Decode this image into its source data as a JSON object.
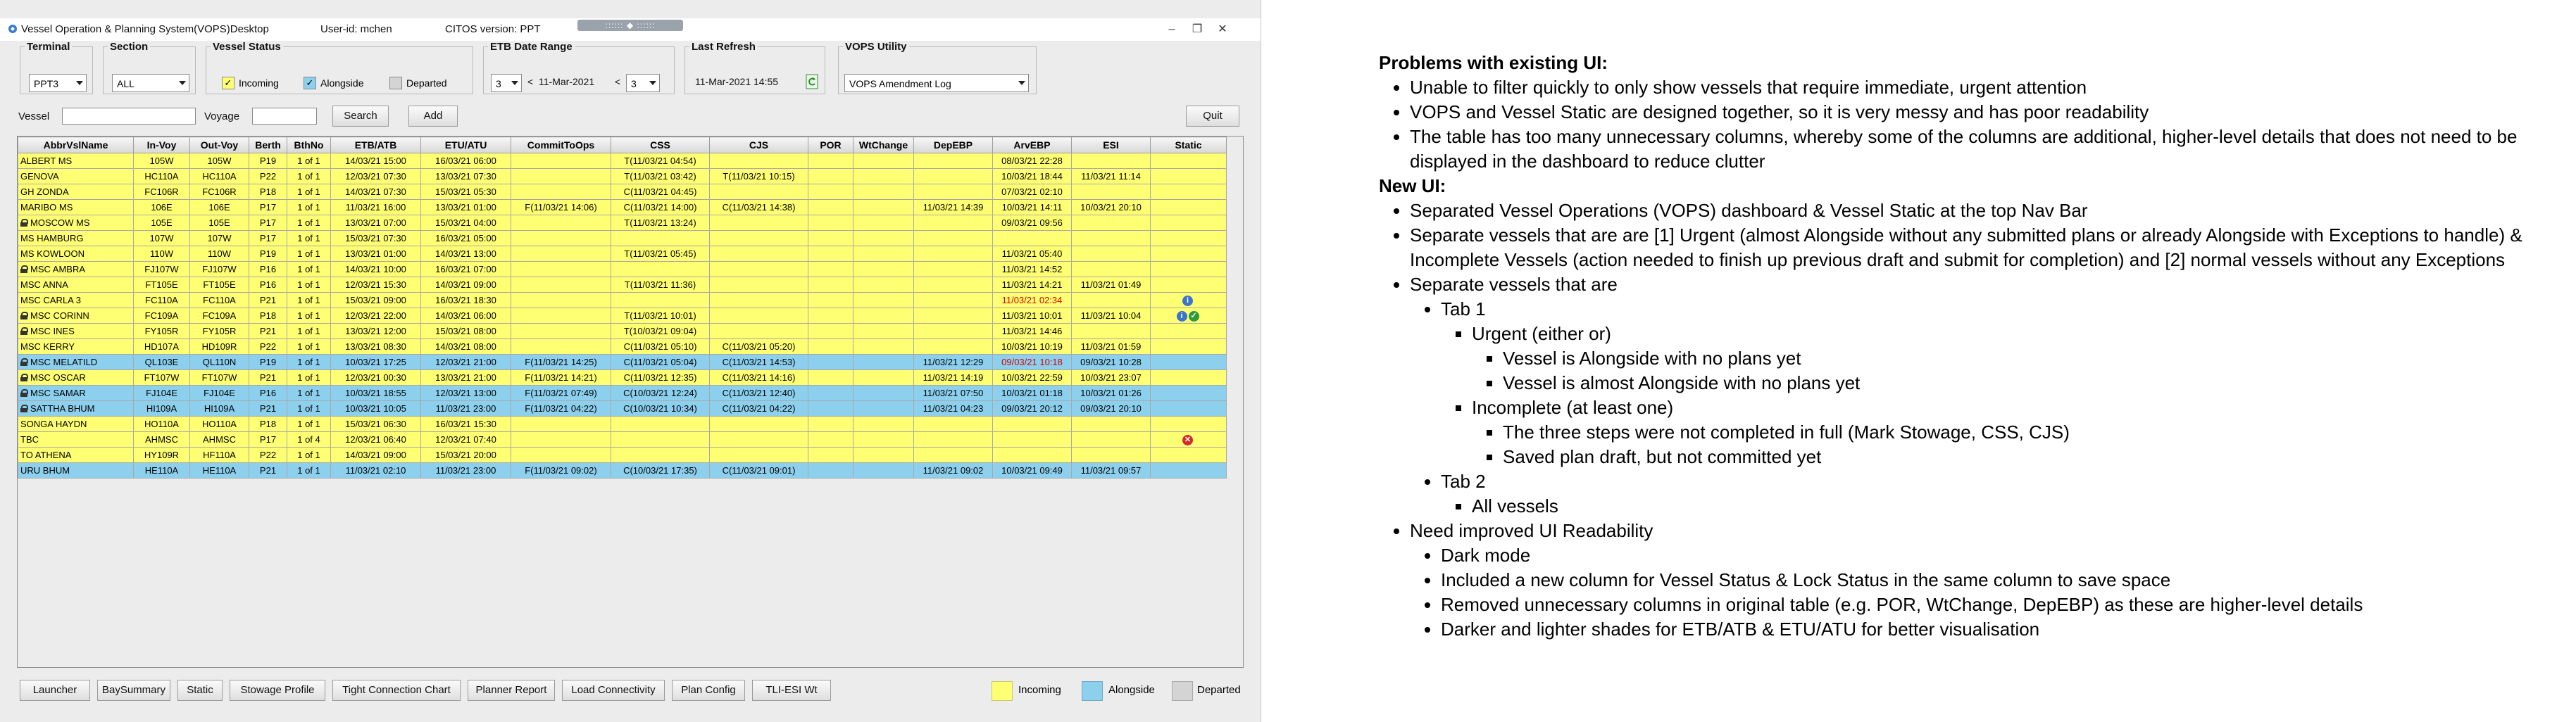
{
  "window": {
    "title": "Vessel Operation & Planning System(VOPS)Desktop",
    "user": "User-id: mchen",
    "citos_version": "CITOS version: PPT",
    "grip_label": ":::::: ◆ ::::::"
  },
  "filters": {
    "terminal": {
      "label": "Terminal",
      "value": "PPT3"
    },
    "section": {
      "label": "Section",
      "value": "ALL"
    },
    "vessel_status": {
      "label": "Vessel Status",
      "incoming": "Incoming",
      "alongside": "Alongside",
      "departed": "Departed"
    },
    "etb_range": {
      "label": "ETB Date Range",
      "from": "3",
      "date": "11-Mar-2021",
      "to": "3",
      "lt": "<"
    },
    "last_refresh": {
      "label": "Last Refresh",
      "value": "11-Mar-2021 14:55"
    },
    "vops_utility": {
      "label": "VOPS Utility",
      "value": "VOPS Amendment Log"
    }
  },
  "search": {
    "vessel_label": "Vessel",
    "voyage_label": "Voyage",
    "vessel_value": "",
    "voyage_value": "",
    "search_button": "Search",
    "add_button": "Add",
    "quit_button": "Quit"
  },
  "table": {
    "headers": [
      "AbbrVslName",
      "In-Voy",
      "Out-Voy",
      "Berth",
      "BthNo",
      "ETB/ATB",
      "ETU/ATU",
      "CommitToOps",
      "CSS",
      "CJS",
      "POR",
      "WtChange",
      "DepEBP",
      "ArvEBP",
      "ESI",
      "Static"
    ],
    "rows": [
      {
        "status": "incoming",
        "lock": false,
        "cells": [
          "ALBERT MS",
          "105W",
          "105W",
          "P19",
          "1 of 1",
          "14/03/21 15:00",
          "16/03/21 06:00",
          "",
          "T(11/03/21 04:54)",
          "",
          "",
          "",
          "",
          "08/03/21 22:28",
          "",
          ""
        ],
        "icons": []
      },
      {
        "status": "incoming",
        "lock": false,
        "cells": [
          "GENOVA",
          "HC110A",
          "HC110A",
          "P22",
          "1 of 1",
          "12/03/21 07:30",
          "13/03/21 07:30",
          "",
          "T(11/03/21 03:42)",
          "T(11/03/21 10:15)",
          "",
          "",
          "",
          "10/03/21 18:44",
          "11/03/21 11:14",
          ""
        ],
        "icons": []
      },
      {
        "status": "incoming",
        "lock": false,
        "cells": [
          "GH ZONDA",
          "FC106R",
          "FC106R",
          "P18",
          "1 of 1",
          "14/03/21 07:30",
          "15/03/21 05:30",
          "",
          "C(11/03/21 04:45)",
          "",
          "",
          "",
          "",
          "07/03/21 02:10",
          "",
          ""
        ],
        "icons": []
      },
      {
        "status": "incoming",
        "lock": false,
        "cells": [
          "MARIBO MS",
          "106E",
          "106E",
          "P17",
          "1 of 1",
          "11/03/21 16:00",
          "13/03/21 01:00",
          "F(11/03/21 14:06)",
          "C(11/03/21 14:00)",
          "C(11/03/21 14:38)",
          "",
          "",
          "11/03/21 14:39",
          "10/03/21 14:11",
          "10/03/21 20:10",
          ""
        ],
        "icons": []
      },
      {
        "status": "incoming",
        "lock": true,
        "cells": [
          "MOSCOW MS",
          "105E",
          "105E",
          "P17",
          "1 of 1",
          "13/03/21 07:00",
          "15/03/21 04:00",
          "",
          "T(11/03/21 13:24)",
          "",
          "",
          "",
          "",
          "09/03/21 09:56",
          "",
          ""
        ],
        "icons": []
      },
      {
        "status": "incoming",
        "lock": false,
        "cells": [
          "MS HAMBURG",
          "107W",
          "107W",
          "P17",
          "1 of 1",
          "15/03/21 07:30",
          "16/03/21 05:00",
          "",
          "",
          "",
          "",
          "",
          "",
          "",
          "",
          ""
        ],
        "icons": []
      },
      {
        "status": "incoming",
        "lock": false,
        "cells": [
          "MS KOWLOON",
          "110W",
          "110W",
          "P19",
          "1 of 1",
          "13/03/21 01:00",
          "14/03/21 13:00",
          "",
          "T(11/03/21 05:45)",
          "",
          "",
          "",
          "",
          "11/03/21 05:40",
          "",
          ""
        ],
        "icons": []
      },
      {
        "status": "incoming",
        "lock": true,
        "cells": [
          "MSC AMBRA",
          "FJ107W",
          "FJ107W",
          "P16",
          "1 of 1",
          "14/03/21 10:00",
          "16/03/21 07:00",
          "",
          "",
          "",
          "",
          "",
          "",
          "11/03/21 14:52",
          "",
          ""
        ],
        "icons": []
      },
      {
        "status": "incoming",
        "lock": false,
        "cells": [
          "MSC ANNA",
          "FT105E",
          "FT105E",
          "P16",
          "1 of 1",
          "12/03/21 15:30",
          "14/03/21 09:00",
          "",
          "T(11/03/21 11:36)",
          "",
          "",
          "",
          "",
          "11/03/21 14:21",
          "11/03/21 01:49",
          ""
        ],
        "icons": []
      },
      {
        "status": "incoming",
        "lock": false,
        "red_arv": true,
        "cells": [
          "MSC CARLA 3",
          "FC110A",
          "FC110A",
          "P21",
          "1 of 1",
          "15/03/21 09:00",
          "16/03/21 18:30",
          "",
          "",
          "",
          "",
          "",
          "",
          "11/03/21 02:34",
          "",
          ""
        ],
        "icons": [
          "info"
        ]
      },
      {
        "status": "incoming",
        "lock": true,
        "cells": [
          "MSC CORINN",
          "FC109A",
          "FC109A",
          "P18",
          "1 of 1",
          "12/03/21 22:00",
          "14/03/21 06:00",
          "",
          "T(11/03/21 10:01)",
          "",
          "",
          "",
          "",
          "11/03/21 10:01",
          "11/03/21 10:04",
          ""
        ],
        "icons": [
          "info",
          "ok"
        ]
      },
      {
        "status": "incoming",
        "lock": true,
        "cells": [
          "MSC INES",
          "FY105R",
          "FY105R",
          "P21",
          "1 of 1",
          "13/03/21 12:00",
          "15/03/21 08:00",
          "",
          "T(10/03/21 09:04)",
          "",
          "",
          "",
          "",
          "11/03/21 14:46",
          "",
          ""
        ],
        "icons": []
      },
      {
        "status": "incoming",
        "lock": false,
        "cells": [
          "MSC KERRY",
          "HD107A",
          "HD109R",
          "P22",
          "1 of 1",
          "13/03/21 08:30",
          "14/03/21 08:00",
          "",
          "C(11/03/21 05:10)",
          "C(11/03/21 05:20)",
          "",
          "",
          "",
          "10/03/21 10:19",
          "11/03/21 01:59",
          ""
        ],
        "icons": []
      },
      {
        "status": "alongside",
        "lock": true,
        "red_arv": true,
        "cells": [
          "MSC MELATILD",
          "QL103E",
          "QL110N",
          "P19",
          "1 of 1",
          "10/03/21 17:25",
          "12/03/21 21:00",
          "F(11/03/21 14:25)",
          "C(11/03/21 05:04)",
          "C(11/03/21 14:53)",
          "",
          "",
          "11/03/21 12:29",
          "09/03/21 10:18",
          "09/03/21 10:28",
          ""
        ],
        "icons": []
      },
      {
        "status": "incoming",
        "lock": true,
        "cells": [
          "MSC OSCAR",
          "FT107W",
          "FT107W",
          "P21",
          "1 of 1",
          "12/03/21 00:30",
          "13/03/21 21:00",
          "F(11/03/21 14:21)",
          "C(11/03/21 12:35)",
          "C(11/03/21 14:16)",
          "",
          "",
          "11/03/21 14:19",
          "10/03/21 22:59",
          "10/03/21 23:07",
          ""
        ],
        "icons": []
      },
      {
        "status": "alongside",
        "lock": true,
        "cells": [
          "MSC SAMAR",
          "FJ104E",
          "FJ104E",
          "P16",
          "1 of 1",
          "10/03/21 18:55",
          "12/03/21 13:00",
          "F(11/03/21 07:49)",
          "C(10/03/21 12:24)",
          "C(11/03/21 12:40)",
          "",
          "",
          "11/03/21 07:50",
          "10/03/21 01:18",
          "10/03/21 01:26",
          ""
        ],
        "icons": []
      },
      {
        "status": "alongside",
        "lock": true,
        "cells": [
          "SATTHA BHUM",
          "HI109A",
          "HI109A",
          "P21",
          "1 of 1",
          "10/03/21 10:05",
          "11/03/21 23:00",
          "F(11/03/21 04:22)",
          "C(10/03/21 10:34)",
          "C(11/03/21 04:22)",
          "",
          "",
          "11/03/21 04:23",
          "09/03/21 20:12",
          "09/03/21 20:10",
          ""
        ],
        "icons": []
      },
      {
        "status": "incoming",
        "lock": false,
        "cells": [
          "SONGA HAYDN",
          "HO110A",
          "HO110A",
          "P18",
          "1 of 1",
          "15/03/21 06:30",
          "16/03/21 15:30",
          "",
          "",
          "",
          "",
          "",
          "",
          "",
          "",
          ""
        ],
        "icons": []
      },
      {
        "status": "incoming",
        "lock": false,
        "cells": [
          "TBC",
          "AHMSC",
          "AHMSC",
          "P17",
          "1 of 4",
          "12/03/21 06:40",
          "12/03/21 07:40",
          "",
          "",
          "",
          "",
          "",
          "",
          "",
          "",
          ""
        ],
        "icons": [
          "error"
        ]
      },
      {
        "status": "incoming",
        "lock": false,
        "cells": [
          "TO ATHENA",
          "HY109R",
          "HF110A",
          "P22",
          "1 of 1",
          "14/03/21 09:00",
          "15/03/21 20:00",
          "",
          "",
          "",
          "",
          "",
          "",
          "",
          "",
          ""
        ],
        "icons": []
      },
      {
        "status": "alongside",
        "lock": false,
        "cells": [
          "URU BHUM",
          "HE110A",
          "HE110A",
          "P21",
          "1 of 1",
          "11/03/21 02:10",
          "11/03/21 23:00",
          "F(11/03/21 09:02)",
          "C(10/03/21 17:35)",
          "C(11/03/21 09:01)",
          "",
          "",
          "11/03/21 09:02",
          "10/03/21 09:49",
          "11/03/21 09:57",
          ""
        ],
        "icons": []
      }
    ]
  },
  "bottom_buttons": [
    "Launcher",
    "BaySummary",
    "Static",
    "Stowage Profile",
    "Tight Connection Chart",
    "Planner Report",
    "Load Connectivity",
    "Plan Config",
    "TLI-ESI Wt"
  ],
  "legend": {
    "incoming": {
      "label": "Incoming",
      "color": "#ffff73"
    },
    "alongside": {
      "label": "Alongside",
      "color": "#8cd0ee"
    },
    "departed": {
      "label": "Departed",
      "color": "#d4d4d4"
    }
  },
  "notes": {
    "problems_title": "Problems with existing UI:",
    "problems": [
      "Unable to filter quickly to only show vessels that require immediate, urgent attention",
      "VOPS and Vessel Static are designed together, so it is very messy and has poor readability",
      "The table has too many unnecessary columns, whereby some of the columns are additional, higher-level details that does not need to be displayed in the dashboard to reduce clutter"
    ],
    "new_ui_title": "New UI:",
    "new_ui_1": "Separated Vessel Operations (VOPS) dashboard & Vessel Static at the top Nav Bar",
    "new_ui_2": "Separate vessels that are are [1] Urgent (almost Alongside without any submitted plans or already Alongside with Exceptions to handle) & Incomplete Vessels (action needed to finish up previous draft and submit for completion) and [2] normal vessels without any Exceptions",
    "new_ui_3": "Separate vessels that are",
    "tab1": "Tab 1",
    "urgent": "Urgent (either or)",
    "urgent_a": "Vessel is Alongside with no plans yet",
    "urgent_b": "Vessel is almost Alongside with no plans yet",
    "incomplete": "Incomplete (at least one)",
    "incomplete_a": "The three steps were not completed in full (Mark Stowage, CSS, CJS)",
    "incomplete_b": "Saved plan draft, but not committed yet",
    "tab2": "Tab 2",
    "all_vessels": "All vessels",
    "readability": "Need improved UI Readability",
    "dark_mode": "Dark mode",
    "new_column": "Included a new column for Vessel Status & Lock Status in the same column to save space",
    "removed_columns": "Removed unnecessary columns in original table (e.g. POR, WtChange, DepEBP) as these are higher-level details",
    "shades": "Darker and lighter shades for ETB/ATB & ETU/ATU for better visualisation"
  }
}
